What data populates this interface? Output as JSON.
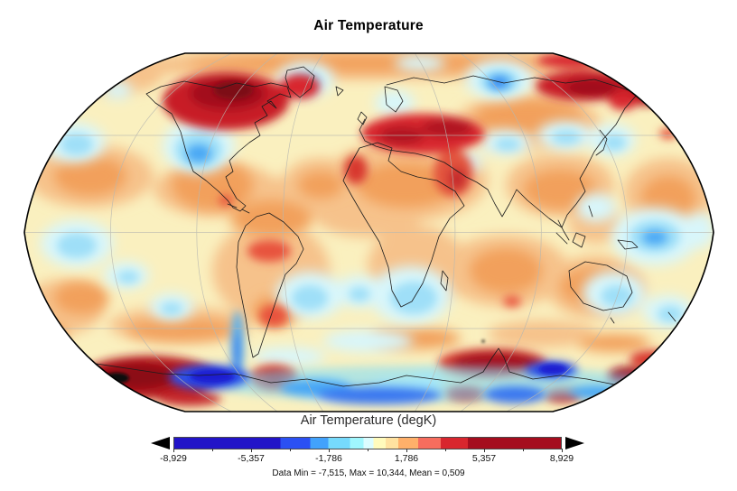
{
  "title": "Air Temperature",
  "colorbar": {
    "label": "Air Temperature (degK)",
    "tick_labels": [
      "-8,929",
      "-5,357",
      "-1,786",
      "1,786",
      "5,357",
      "8,929"
    ],
    "tick_values": [
      -8.929,
      -5.357,
      -1.786,
      1.786,
      5.357,
      8.929
    ],
    "stats": "Data Min = -7,515, Max = 10,344, Mean = 0,509",
    "data_min": "-7,515",
    "data_max": "10,344",
    "data_mean": "0,509",
    "underflow_arrow": "left-filled-triangle",
    "overflow_arrow": "right-filled-triangle",
    "segments": [
      {
        "color": "#2214C8",
        "to": 27.5
      },
      {
        "color": "#2B50F3",
        "to": 35.2
      },
      {
        "color": "#42A2FC",
        "to": 39.8
      },
      {
        "color": "#76DAFC",
        "to": 45.4
      },
      {
        "color": "#A0F7FE",
        "to": 48.9
      },
      {
        "color": "#DCFDFF",
        "to": 51.5
      },
      {
        "color": "#FFFBBC",
        "to": 54.7
      },
      {
        "color": "#FFE2A0",
        "to": 58.0
      },
      {
        "color": "#FFB06A",
        "to": 63.1
      },
      {
        "color": "#F76D5E",
        "to": 68.9
      },
      {
        "color": "#D8262E",
        "to": 75.9
      },
      {
        "color": "#A50D1E",
        "to": 100
      }
    ]
  },
  "map": {
    "colors": {
      "base": "#FAF0BF",
      "warm_wash": "#F6C28B",
      "warm_strong": "#F2A05C",
      "hot": "#D8262E",
      "hottest": "#7D0913",
      "cool_wash": "#D8F6FB",
      "cool_medium": "#9FDFF8",
      "cold": "#49A7F4",
      "coldest": "#1B1FD0",
      "overflow_black": "#0B0B0B",
      "coastline": "#1C1C1C",
      "graticule": "#B8B8B0",
      "outline": "#000000"
    }
  }
}
